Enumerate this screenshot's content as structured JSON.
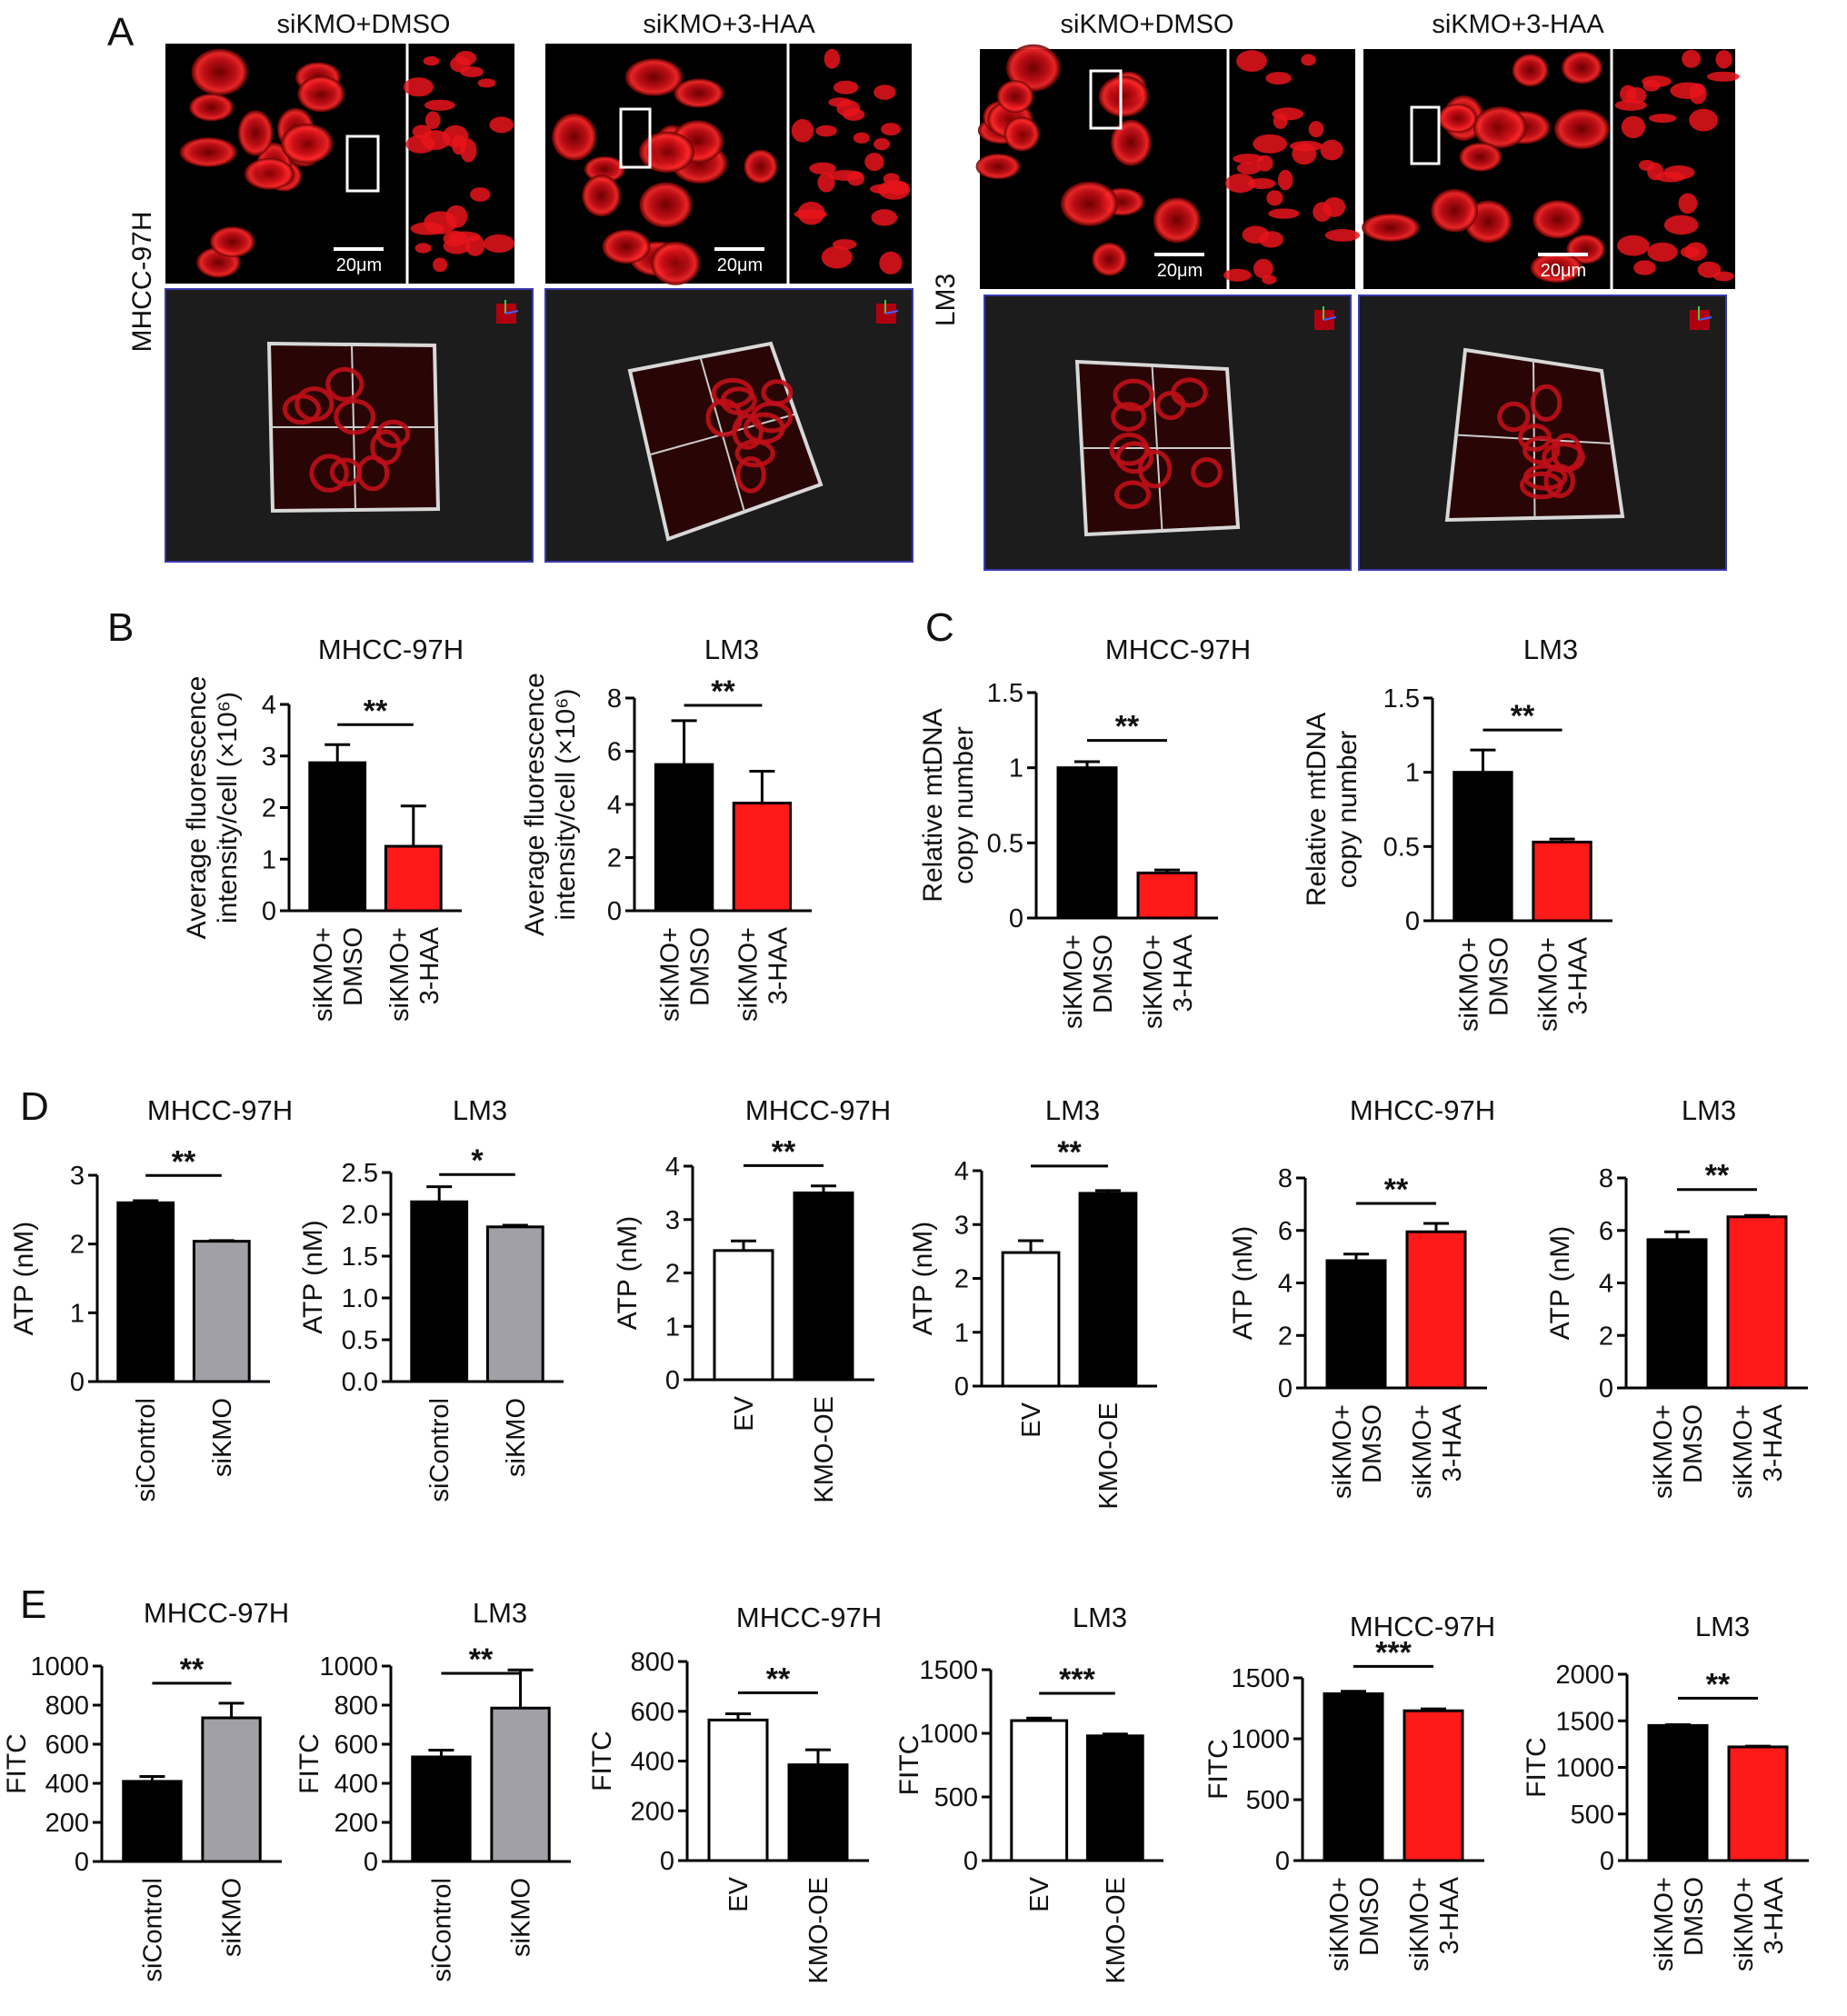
{
  "panel_labels": {
    "A": "A",
    "B": "B",
    "C": "C",
    "D": "D",
    "E": "E"
  },
  "panel_a": {
    "row_labels": {
      "left": "MHCC-97H",
      "right": "LM3"
    },
    "conditions": [
      "siKMO+DMSO",
      "siKMO+3-HAA",
      "siKMO+DMSO",
      "siKMO+3-HAA"
    ],
    "scale_bar": "20μm",
    "colors": {
      "stain": "#e8141b",
      "background": "#000000",
      "render_bg": "#1c1c1c"
    }
  },
  "chart_data": [
    {
      "id": "B1",
      "type": "bar",
      "title": "MHCC-97H",
      "ylabel": "Average fluorescence\nintensity/cell (×10⁶)",
      "categories": [
        "siKMO+\nDMSO",
        "siKMO+\n3-HAA"
      ],
      "values": [
        2.87,
        1.25
      ],
      "errors": [
        0.35,
        0.78
      ],
      "colors": [
        "#000000",
        "#ff1a1a"
      ],
      "ylim": [
        0,
        4
      ],
      "yticks": [
        "0",
        "1",
        "2",
        "3",
        "4"
      ],
      "significance": "**"
    },
    {
      "id": "B2",
      "type": "bar",
      "title": "LM3",
      "ylabel": "Average fluorescence\nintensity/cell (×10⁶)",
      "categories": [
        "siKMO+\nDMSO",
        "siKMO+\n3-HAA"
      ],
      "values": [
        5.5,
        4.05
      ],
      "errors": [
        1.65,
        1.2
      ],
      "colors": [
        "#000000",
        "#ff1a1a"
      ],
      "ylim": [
        0,
        8
      ],
      "yticks": [
        "0",
        "2",
        "4",
        "6",
        "8"
      ],
      "significance": "**"
    },
    {
      "id": "C1",
      "type": "bar",
      "title": "MHCC-97H",
      "ylabel": "Relative mtDNA\ncopy number",
      "categories": [
        "siKMO+\nDMSO",
        "siKMO+\n3-HAA"
      ],
      "values": [
        1.0,
        0.3
      ],
      "errors": [
        0.04,
        0.02
      ],
      "colors": [
        "#000000",
        "#ff1a1a"
      ],
      "ylim": [
        0,
        1.5
      ],
      "yticks": [
        "0",
        "0.5",
        "1",
        "1.5"
      ],
      "significance": "**"
    },
    {
      "id": "C2",
      "type": "bar",
      "title": "LM3",
      "ylabel": "Relative mtDNA\ncopy number",
      "categories": [
        "siKMO+\nDMSO",
        "siKMO+\n3-HAA"
      ],
      "values": [
        1.0,
        0.53
      ],
      "errors": [
        0.15,
        0.02
      ],
      "colors": [
        "#000000",
        "#ff1a1a"
      ],
      "ylim": [
        0,
        1.5
      ],
      "yticks": [
        "0",
        "0.5",
        "1",
        "1.5"
      ],
      "significance": "**"
    },
    {
      "id": "D1",
      "type": "bar",
      "title": "MHCC-97H",
      "ylabel": "ATP (nM)",
      "categories": [
        "siControl",
        "siKMO"
      ],
      "values": [
        2.6,
        2.04
      ],
      "errors": [
        0.03,
        0.01
      ],
      "colors": [
        "#000000",
        "#a0a0a6"
      ],
      "ylim": [
        0,
        3
      ],
      "yticks": [
        "0",
        "1",
        "2",
        "3"
      ],
      "significance": "**"
    },
    {
      "id": "D2",
      "type": "bar",
      "title": "LM3",
      "ylabel": "ATP (nM)",
      "categories": [
        "siControl",
        "siKMO"
      ],
      "values": [
        2.15,
        1.85
      ],
      "errors": [
        0.18,
        0.02
      ],
      "colors": [
        "#000000",
        "#a0a0a6"
      ],
      "ylim": [
        0,
        2.5
      ],
      "yticks": [
        "0.0",
        "0.5",
        "1.0",
        "1.5",
        "2.0",
        "2.5"
      ],
      "significance": "*"
    },
    {
      "id": "D3",
      "type": "bar",
      "title": "MHCC-97H",
      "ylabel": "ATP (nM)",
      "categories": [
        "EV",
        "KMO-OE"
      ],
      "values": [
        2.42,
        3.5
      ],
      "errors": [
        0.18,
        0.13
      ],
      "colors": [
        "#ffffff",
        "#000000"
      ],
      "ylim": [
        0,
        4
      ],
      "yticks": [
        "0",
        "1",
        "2",
        "3",
        "4"
      ],
      "significance": "**"
    },
    {
      "id": "D4",
      "type": "bar",
      "title": "LM3",
      "ylabel": "ATP (nM)",
      "categories": [
        "EV",
        "KMO-OE"
      ],
      "values": [
        2.48,
        3.58
      ],
      "errors": [
        0.22,
        0.05
      ],
      "colors": [
        "#ffffff",
        "#000000"
      ],
      "ylim": [
        0,
        4
      ],
      "yticks": [
        "0",
        "1",
        "2",
        "3",
        "4"
      ],
      "significance": "**"
    },
    {
      "id": "D5",
      "type": "bar",
      "title": "MHCC-97H",
      "ylabel": "ATP (nM)",
      "categories": [
        "siKMO+\nDMSO",
        "siKMO+\n3-HAA"
      ],
      "values": [
        4.85,
        5.95
      ],
      "errors": [
        0.25,
        0.32
      ],
      "colors": [
        "#000000",
        "#ff1a1a"
      ],
      "ylim": [
        0,
        8
      ],
      "yticks": [
        "0",
        "2",
        "4",
        "6",
        "8"
      ],
      "significance": "**"
    },
    {
      "id": "D6",
      "type": "bar",
      "title": "LM3",
      "ylabel": "ATP (nM)",
      "categories": [
        "siKMO+\nDMSO",
        "siKMO+\n3-HAA"
      ],
      "values": [
        5.65,
        6.52
      ],
      "errors": [
        0.3,
        0.05
      ],
      "colors": [
        "#000000",
        "#ff1a1a"
      ],
      "ylim": [
        0,
        8
      ],
      "yticks": [
        "0",
        "2",
        "4",
        "6",
        "8"
      ],
      "significance": "**"
    },
    {
      "id": "E1",
      "type": "bar",
      "title": "MHCC-97H",
      "ylabel": "FITC",
      "categories": [
        "siControl",
        "siKMO"
      ],
      "values": [
        410,
        735
      ],
      "errors": [
        25,
        75
      ],
      "colors": [
        "#000000",
        "#a0a0a6"
      ],
      "ylim": [
        0,
        1000
      ],
      "yticks": [
        "0",
        "200",
        "400",
        "600",
        "800",
        "1000"
      ],
      "significance": "**"
    },
    {
      "id": "E2",
      "type": "bar",
      "title": "LM3",
      "ylabel": "FITC",
      "categories": [
        "siControl",
        "siKMO"
      ],
      "values": [
        535,
        785
      ],
      "errors": [
        35,
        195
      ],
      "colors": [
        "#000000",
        "#a0a0a6"
      ],
      "ylim": [
        0,
        1000
      ],
      "yticks": [
        "0",
        "200",
        "400",
        "600",
        "800",
        "1000"
      ],
      "significance": "**"
    },
    {
      "id": "E3",
      "type": "bar",
      "title": "MHCC-97H",
      "ylabel": "FITC",
      "categories": [
        "EV",
        "KMO-OE"
      ],
      "values": [
        565,
        385
      ],
      "errors": [
        25,
        60
      ],
      "colors": [
        "#ffffff",
        "#000000"
      ],
      "ylim": [
        0,
        800
      ],
      "yticks": [
        "0",
        "200",
        "400",
        "600",
        "800"
      ],
      "significance": "**"
    },
    {
      "id": "E4",
      "type": "bar",
      "title": "LM3",
      "ylabel": "FITC",
      "categories": [
        "EV",
        "KMO-OE"
      ],
      "values": [
        1100,
        980
      ],
      "errors": [
        20,
        15
      ],
      "colors": [
        "#ffffff",
        "#000000"
      ],
      "ylim": [
        0,
        1500
      ],
      "yticks": [
        "0",
        "500",
        "1000",
        "1500"
      ],
      "significance": "***"
    },
    {
      "id": "E5",
      "type": "bar",
      "title": "MHCC-97H",
      "ylabel": "FITC",
      "categories": [
        "siKMO+\nDMSO",
        "siKMO+\n3-HAA"
      ],
      "values": [
        1370,
        1230
      ],
      "errors": [
        20,
        15
      ],
      "colors": [
        "#000000",
        "#ff1a1a"
      ],
      "ylim": [
        0,
        1500
      ],
      "yticks": [
        "0",
        "500",
        "1000",
        "1500"
      ],
      "significance": "***"
    },
    {
      "id": "E6",
      "type": "bar",
      "title": "LM3",
      "ylabel": "FITC",
      "categories": [
        "siKMO+\nDMSO",
        "siKMO+\n3-HAA"
      ],
      "values": [
        1450,
        1220
      ],
      "errors": [
        8,
        8
      ],
      "colors": [
        "#000000",
        "#ff1a1a"
      ],
      "ylim": [
        0,
        2000
      ],
      "yticks": [
        "0",
        "500",
        "1000",
        "1500",
        "2000"
      ],
      "significance": "**"
    }
  ]
}
